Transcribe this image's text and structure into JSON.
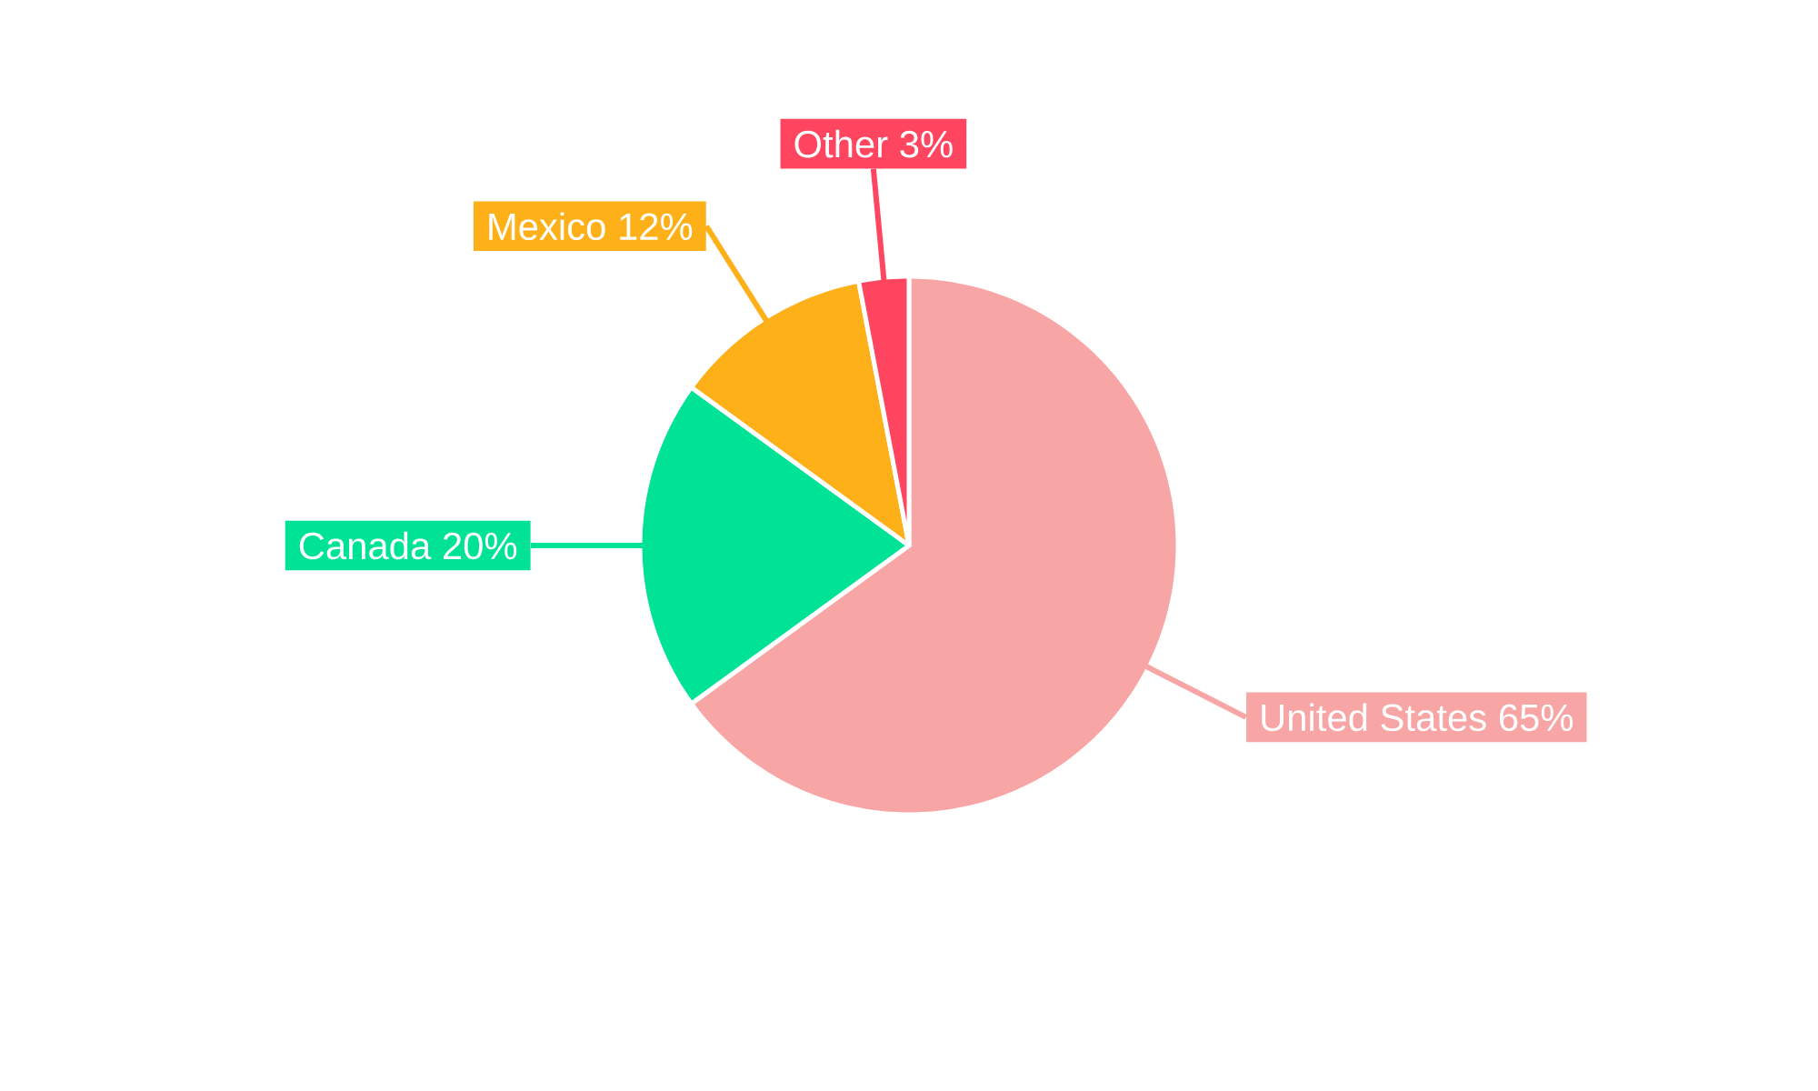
{
  "chart_data": {
    "type": "pie",
    "categories": [
      "United States",
      "Canada",
      "Mexico",
      "Other"
    ],
    "values": [
      65,
      20,
      12,
      3
    ],
    "value_labels": [
      "65%",
      "20%",
      "12%",
      "3%"
    ],
    "colors": [
      "#f8a5a5",
      "#00e396",
      "#feb019",
      "#ff4560"
    ]
  }
}
